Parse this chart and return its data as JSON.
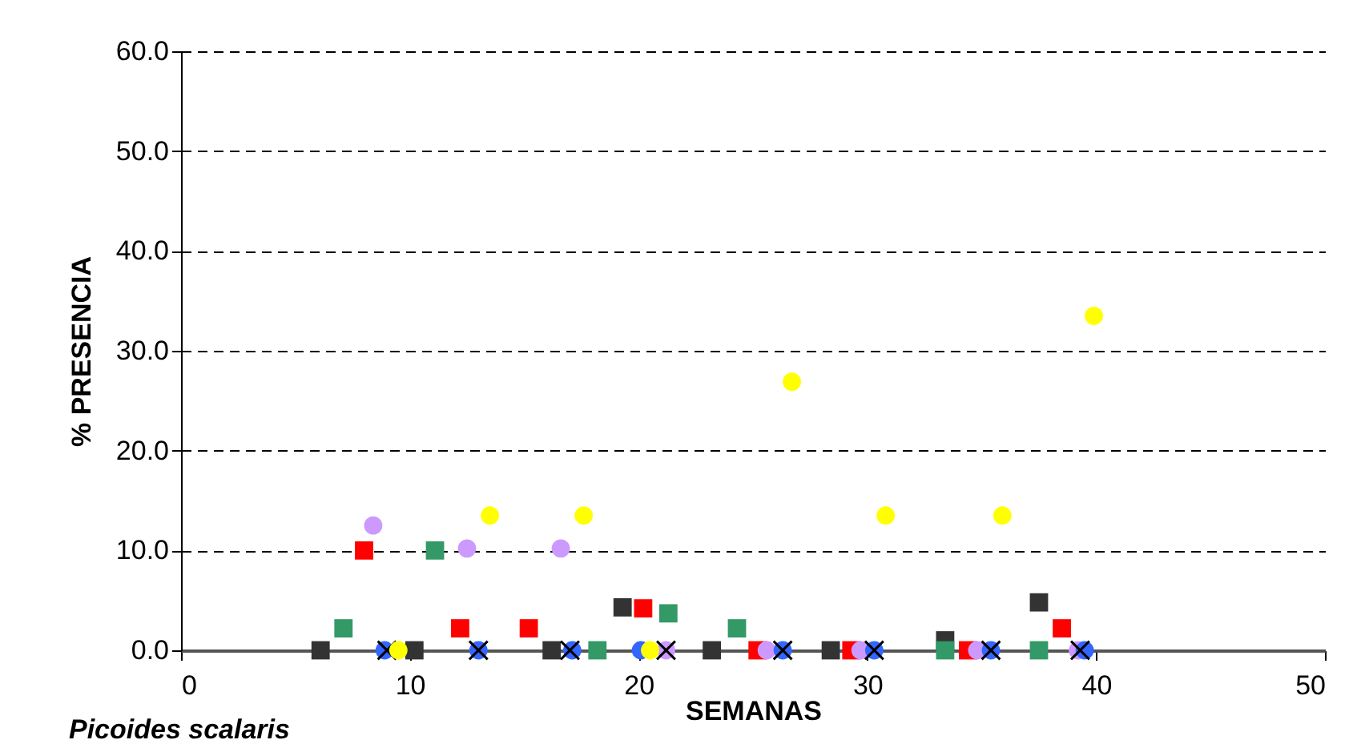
{
  "chart_data": {
    "type": "scatter",
    "xlabel": "SEMANAS",
    "ylabel": "% PRESENCIA",
    "annotations": [
      "Picoides scalaris"
    ],
    "xlim": [
      0,
      50
    ],
    "xticks": [
      0,
      10,
      20,
      30,
      40,
      50
    ],
    "ylim": [
      0,
      60
    ],
    "yticks": [
      {
        "value": 0,
        "label": "0.0"
      },
      {
        "value": 10,
        "label": "10.0"
      },
      {
        "value": 20,
        "label": "20.0"
      },
      {
        "value": 30,
        "label": "30.0"
      },
      {
        "value": 40,
        "label": "40.0"
      },
      {
        "value": 50,
        "label": "50.0"
      },
      {
        "value": 60,
        "label": "60.0"
      }
    ],
    "grid": "y",
    "series": [
      {
        "color": "#333333",
        "marker": "square",
        "x": [
          6.1,
          10.2,
          16.2,
          19.3,
          23.2,
          28.4,
          33.4,
          37.5
        ],
        "values": [
          0,
          0,
          0,
          4.3,
          0,
          0,
          1.0,
          4.8
        ]
      },
      {
        "color": "#ff0000",
        "marker": "square",
        "x": [
          8.0,
          12.2,
          15.2,
          20.2,
          25.2,
          29.3,
          34.4,
          38.5
        ],
        "values": [
          10.0,
          2.2,
          2.2,
          4.2,
          0,
          0,
          0,
          2.2
        ]
      },
      {
        "color": "#339966",
        "marker": "square",
        "x": [
          7.1,
          11.1,
          18.2,
          21.3,
          24.3,
          33.4,
          37.5
        ],
        "values": [
          2.2,
          10.0,
          0,
          3.7,
          2.2,
          0,
          0
        ]
      },
      {
        "color": "#cc99ff",
        "marker": "circle",
        "x": [
          8.4,
          12.5,
          16.6,
          21.2,
          25.6,
          29.7,
          34.8,
          39.2
        ],
        "values": [
          12.5,
          10.2,
          10.2,
          0,
          0,
          0,
          0,
          0
        ]
      },
      {
        "color": "#3366ff",
        "marker": "circle",
        "x": [
          8.9,
          13.0,
          17.1,
          20.1,
          26.3,
          30.3,
          35.4,
          39.5
        ],
        "values": [
          0,
          0,
          0,
          0,
          0,
          0,
          0,
          0
        ]
      },
      {
        "color": "#000000",
        "marker": "cross",
        "x": [
          9.0,
          13.0,
          17.0,
          21.2,
          26.3,
          30.3,
          35.4,
          39.3
        ],
        "values": [
          0,
          0,
          0,
          0,
          0,
          0,
          0,
          0
        ]
      },
      {
        "color": "#ffff00",
        "marker": "circle",
        "x": [
          9.5,
          13.5,
          17.6,
          20.5,
          26.7,
          30.8,
          35.9,
          39.9
        ],
        "values": [
          0,
          13.5,
          13.5,
          0,
          26.9,
          13.5,
          13.5,
          33.5
        ]
      }
    ]
  }
}
